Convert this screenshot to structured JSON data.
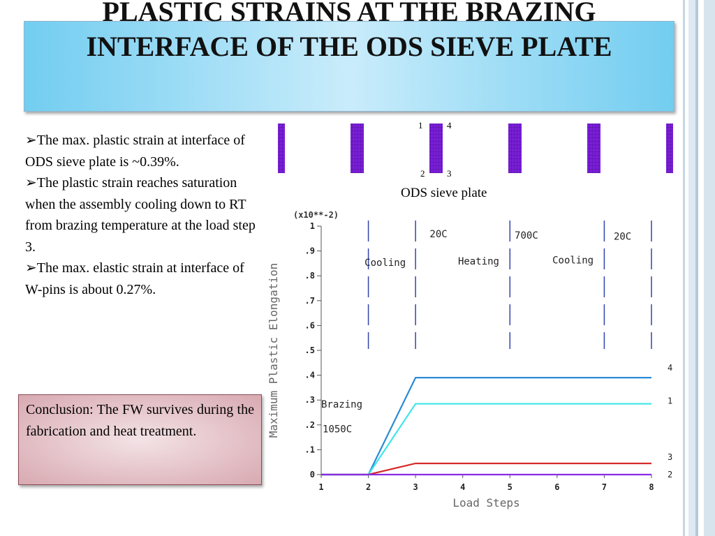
{
  "slide": {
    "title": "PLASTIC STRAINS AT THE BRAZING INTERFACE OF THE ODS SIEVE PLATE",
    "bullets": [
      "➢The max. plastic strain at interface of ODS sieve plate  is ~0.39%.",
      "➢The plastic strain reaches saturation when the assembly cooling down to RT from brazing temperature at the load step 3.",
      "➢The max. elastic strain at interface of W-pins is about 0.27%."
    ],
    "conclusion": "Conclusion: The FW survives during the fabrication and heat treatment.",
    "plate": {
      "caption": "ODS sieve plate",
      "labels": {
        "tl": "1",
        "tr": "4",
        "bl": "2",
        "br": "3"
      }
    },
    "colors": {
      "title_gradient": "#72cdf0",
      "conclusion_bg": "#d8a9b1",
      "mesh": "#7a1fd9"
    }
  },
  "chart_data": {
    "type": "line",
    "title": "",
    "xlabel": "Load Steps",
    "ylabel": "Maximum Plastic Elongation",
    "y_multiplier": "(x10**-2)",
    "xlim": [
      1,
      8
    ],
    "ylim": [
      0,
      1
    ],
    "x_ticks": [
      "1",
      "2",
      "3",
      "4",
      "5",
      "6",
      "7",
      "8"
    ],
    "y_ticks": [
      "0",
      ".1",
      ".2",
      ".3",
      ".4",
      ".5",
      ".6",
      ".7",
      ".8",
      ".9",
      "1"
    ],
    "x": [
      1,
      2,
      3,
      4,
      5,
      6,
      7,
      8
    ],
    "series": [
      {
        "name": "4",
        "color": "#2a8ad6",
        "values": [
          0,
          0,
          0.39,
          0.39,
          0.39,
          0.39,
          0.39,
          0.39
        ]
      },
      {
        "name": "1",
        "color": "#3ee6ea",
        "values": [
          0,
          0,
          0.285,
          0.285,
          0.285,
          0.285,
          0.285,
          0.285
        ]
      },
      {
        "name": "3",
        "color": "#d42a2a",
        "values": [
          0,
          0,
          0.045,
          0.045,
          0.045,
          0.045,
          0.045,
          0.045
        ]
      },
      {
        "name": "2",
        "color": "#8a2be2",
        "values": [
          0,
          0,
          0,
          0,
          0,
          0,
          0,
          0
        ]
      }
    ],
    "step_markers": [
      2,
      3,
      5,
      7,
      8
    ],
    "annotations": [
      {
        "text": "20C",
        "x": 3.3,
        "y": 0.955
      },
      {
        "text": "700C",
        "x": 5.1,
        "y": 0.95
      },
      {
        "text": "20C",
        "x": 7.2,
        "y": 0.945
      },
      {
        "text": "Cooling",
        "x": 1.92,
        "y": 0.84
      },
      {
        "text": "Heating",
        "x": 3.9,
        "y": 0.845
      },
      {
        "text": "Cooling",
        "x": 5.9,
        "y": 0.85
      },
      {
        "text": "Brazing",
        "x": 1.0,
        "y": 0.27
      },
      {
        "text": "1050C",
        "x": 1.03,
        "y": 0.17
      }
    ],
    "grid": false,
    "legend": "right-end labels"
  }
}
